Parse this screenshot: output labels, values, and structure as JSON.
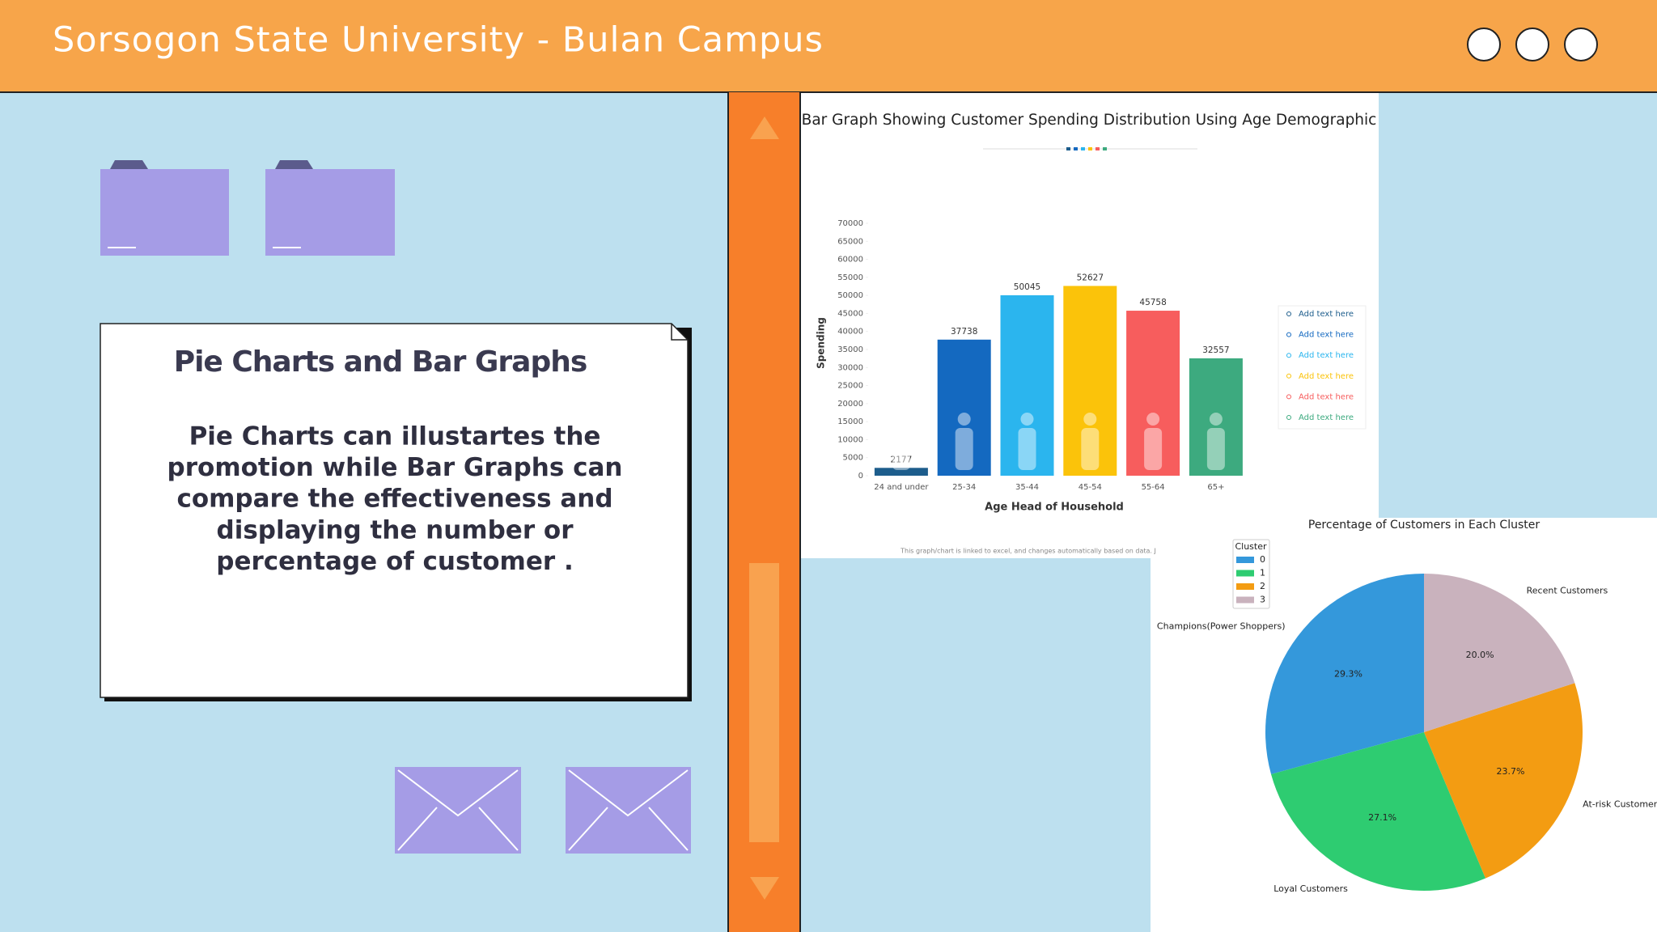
{
  "header": {
    "title": "Sorsogon State University - Bulan Campus"
  },
  "card": {
    "title": "Pie Charts and Bar Graphs",
    "body_lines": [
      "Pie Charts can illustartes the",
      "promotion while Bar Graphs can",
      "compare the effectiveness  and",
      "displaying the number or",
      "percentage of customer ."
    ]
  },
  "chart_data": [
    {
      "type": "bar",
      "title": "Bar Graph Showing Customer Spending Distribution Using Age Demographic",
      "categories": [
        "24 and under",
        "25-34",
        "35-44",
        "45-54",
        "55-64",
        "65+"
      ],
      "values": [
        2177,
        37738,
        50045,
        52627,
        45758,
        32557
      ],
      "colors": [
        "#1d5d8c",
        "#1469c0",
        "#2bb5ee",
        "#fbc30a",
        "#f75d5d",
        "#3daa7f"
      ],
      "ylim": [
        0,
        70000
      ],
      "yticks": [
        0,
        5000,
        10000,
        15000,
        20000,
        25000,
        30000,
        35000,
        40000,
        45000,
        50000,
        55000,
        60000,
        65000,
        70000
      ],
      "ylabel": "Spending",
      "xlabel": "Age Head of Household",
      "legend_items": [
        {
          "label": "Add text here",
          "color": "#1d5d8c"
        },
        {
          "label": "Add text here",
          "color": "#1469c0"
        },
        {
          "label": "Add text here",
          "color": "#2bb5ee"
        },
        {
          "label": "Add text here",
          "color": "#fbc30a"
        },
        {
          "label": "Add text here",
          "color": "#f75d5d"
        },
        {
          "label": "Add text here",
          "color": "#3daa7f"
        }
      ],
      "footnote": "This graph/chart is linked to excel, and changes automatically based on data. J"
    },
    {
      "type": "pie",
      "title": "Percentage of Customers in Each Cluster",
      "categories": [
        "Champions(Power Shoppers)",
        "Loyal Customers",
        "At-risk Customers",
        "Recent Customers"
      ],
      "values": [
        29.3,
        27.1,
        23.7,
        20.0
      ],
      "value_labels": [
        "29.3%",
        "27.1%",
        "23.7%",
        "20.0%"
      ],
      "colors": [
        "#3498db",
        "#2ecc71",
        "#f39c12",
        "#c9b2bd"
      ],
      "legend_title": "Cluster",
      "legend_labels": [
        "0",
        "1",
        "2",
        "3"
      ]
    }
  ]
}
